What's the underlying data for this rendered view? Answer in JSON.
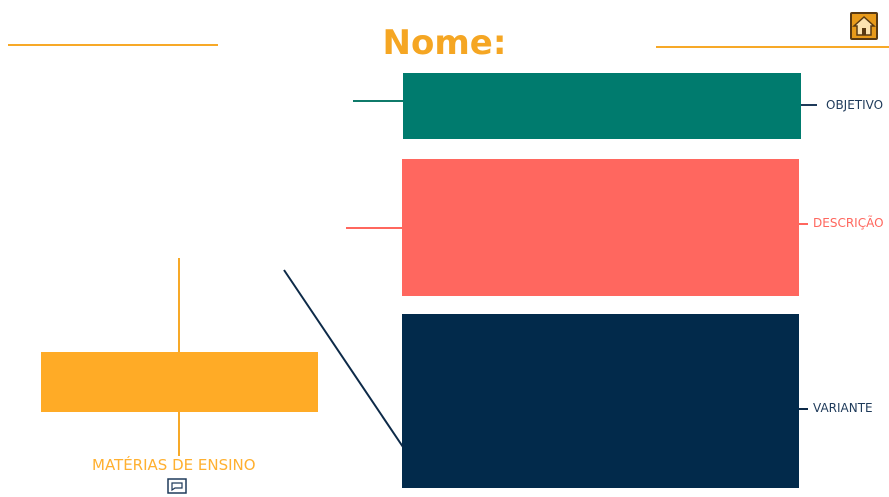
{
  "header": {
    "title": "Nome:"
  },
  "toolbar": {
    "home_icon": "home-icon"
  },
  "diagram": {
    "boxes": [
      {
        "id": "objetivo",
        "label": "OBJETIVO",
        "color": "#007b6e"
      },
      {
        "id": "descricao",
        "label": "DESCRIÇÃO",
        "color": "#ff675f"
      },
      {
        "id": "variante",
        "label": "VARIANTE",
        "color": "#022a4b"
      }
    ],
    "left_block": {
      "label": "MATÉRIAS DE ENSINO",
      "color": "#ffab26"
    },
    "footer_icon": "comment-icon"
  },
  "colors": {
    "accent": "#f5a623",
    "teal": "#007b6e",
    "coral": "#ff675f",
    "navy": "#022a4b"
  }
}
